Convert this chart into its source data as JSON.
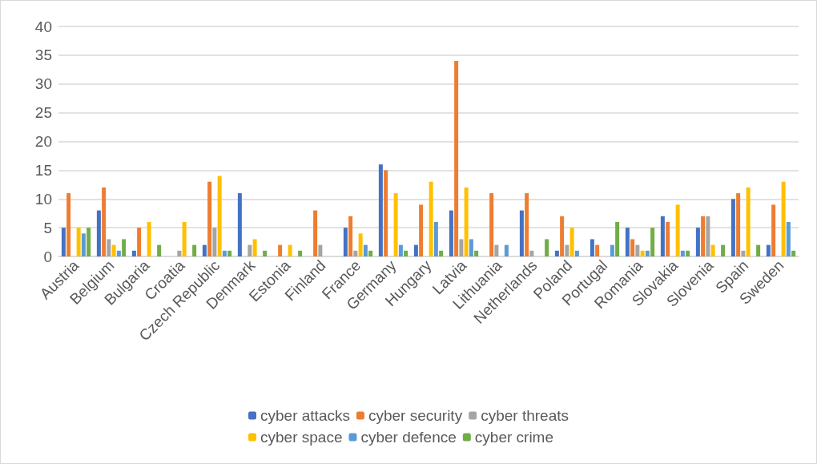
{
  "chart_data": {
    "type": "bar",
    "categories": [
      "Austria",
      "Belgium",
      "Bulgaria",
      "Croatia",
      "Czech Republic",
      "Denmark",
      "Estonia",
      "Finland",
      "France",
      "Germany",
      "Hungary",
      "Latvia",
      "Lithuania",
      "Netherlands",
      "Poland",
      "Portugal",
      "Romania",
      "Slovakia",
      "Slovenia",
      "Spain",
      "Sweden"
    ],
    "series": [
      {
        "name": "cyber attacks",
        "color": "#4472c4",
        "values": [
          5,
          8,
          1,
          0,
          2,
          11,
          0,
          0,
          5,
          16,
          2,
          8,
          0,
          8,
          1,
          3,
          5,
          7,
          5,
          10,
          2
        ]
      },
      {
        "name": "cyber security",
        "color": "#ed7d31",
        "values": [
          11,
          12,
          5,
          0,
          13,
          0,
          2,
          8,
          7,
          15,
          9,
          34,
          11,
          11,
          7,
          2,
          3,
          6,
          7,
          11,
          9
        ]
      },
      {
        "name": "cyber threats",
        "color": "#a5a5a5",
        "values": [
          0,
          3,
          0,
          1,
          5,
          2,
          0,
          2,
          1,
          0,
          0,
          3,
          2,
          1,
          2,
          0,
          2,
          0,
          7,
          1,
          0
        ]
      },
      {
        "name": "cyber space",
        "color": "#ffc000",
        "values": [
          5,
          2,
          6,
          6,
          14,
          3,
          2,
          0,
          4,
          11,
          13,
          12,
          0,
          0,
          5,
          0,
          1,
          9,
          2,
          12,
          13
        ]
      },
      {
        "name": "cyber defence",
        "color": "#5b9bd5",
        "values": [
          4,
          1,
          0,
          0,
          1,
          0,
          0,
          0,
          2,
          2,
          6,
          3,
          2,
          0,
          1,
          2,
          1,
          1,
          0,
          0,
          6
        ]
      },
      {
        "name": "cyber crime",
        "color": "#70ad47",
        "values": [
          5,
          3,
          2,
          2,
          1,
          1,
          1,
          0,
          1,
          1,
          1,
          1,
          0,
          3,
          0,
          6,
          5,
          1,
          2,
          2,
          1
        ]
      }
    ],
    "ylim": [
      0,
      40
    ],
    "yticks": [
      0,
      5,
      10,
      15,
      20,
      25,
      30,
      35,
      40
    ],
    "grid": "y",
    "legend": "bottom"
  }
}
